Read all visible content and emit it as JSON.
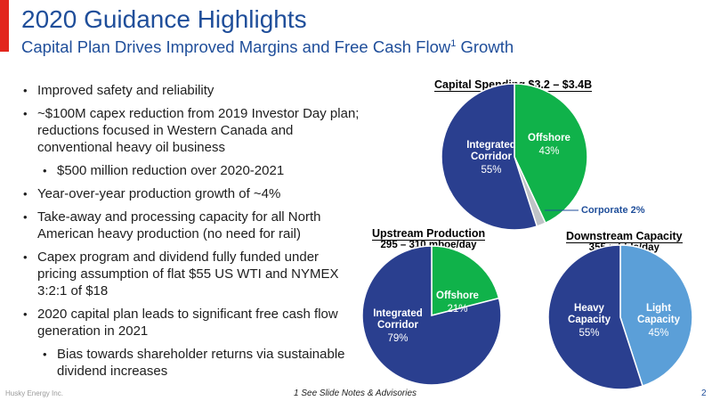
{
  "header": {
    "title": "2020 Guidance Highlights",
    "subtitle": "Capital Plan Drives Improved Margins and Free Cash Flow",
    "subtitle_sup": "1",
    "subtitle_tail": " Growth"
  },
  "bullets": [
    {
      "text": "Improved safety and reliability",
      "level": 1
    },
    {
      "text": "~$100M capex reduction from 2019 Investor Day plan; reductions focused in Western Canada and conventional heavy oil business",
      "level": 1
    },
    {
      "text": "$500 million reduction over 2020-2021",
      "level": 2
    },
    {
      "text": "Year-over-year production growth of ~4%",
      "level": 1
    },
    {
      "text": "Take-away and processing capacity for all North American heavy production (no need for rail)",
      "level": 1
    },
    {
      "text": "Capex program and dividend fully funded under pricing assumption of flat $55 US WTI and NYMEX 3:2:1 of $18",
      "level": 1
    },
    {
      "text": "2020 capital plan leads to significant free cash flow generation in 2021",
      "level": 1
    },
    {
      "text": "Bias towards shareholder returns via sustainable dividend increases",
      "level": 2
    }
  ],
  "colors": {
    "title": "#1f4e9a",
    "accent": "#e2261d",
    "dark_blue": "#2a3f8f",
    "green": "#10b24a",
    "light_blue": "#5b9fd8",
    "grey": "#bfc3c7"
  },
  "chart_data": [
    {
      "type": "pie",
      "title": "Capital Spending $3.2 – $3.4B",
      "subtitle": "",
      "slices": [
        {
          "label": "Offshore",
          "pct_text": "43%",
          "value": 43,
          "color": "#10b24a"
        },
        {
          "label": "Corporate",
          "pct_text": "2%",
          "value": 2,
          "color": "#bfc3c7"
        },
        {
          "label": "Integrated Corridor",
          "pct_text": "55%",
          "value": 55,
          "color": "#2a3f8f"
        }
      ]
    },
    {
      "type": "pie",
      "title": "Upstream Production",
      "subtitle": "295 – 310 mboe/day",
      "slices": [
        {
          "label": "Offshore",
          "pct_text": "21%",
          "value": 21,
          "color": "#10b24a"
        },
        {
          "label": "Integrated Corridor",
          "pct_text": "79%",
          "value": 79,
          "color": "#2a3f8f"
        }
      ]
    },
    {
      "type": "pie",
      "title": "Downstream Capacity",
      "subtitle": "355 mbbls/day",
      "slices": [
        {
          "label": "Light Capacity",
          "pct_text": "45%",
          "value": 45,
          "color": "#5b9fd8"
        },
        {
          "label": "Heavy Capacity",
          "pct_text": "55%",
          "value": 55,
          "color": "#2a3f8f"
        }
      ]
    }
  ],
  "footer": {
    "company": "Husky Energy Inc.",
    "note": "1 See Slide Notes & Advisories",
    "page": "2"
  }
}
